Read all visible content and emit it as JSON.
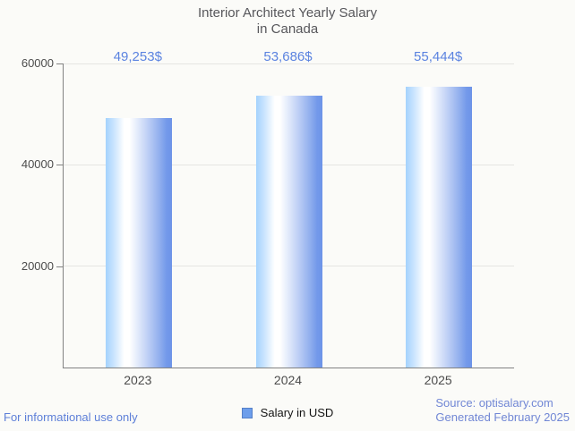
{
  "chart_data": {
    "type": "bar",
    "title": "Interior Architect Yearly Salary in Canada",
    "title_lines": [
      "Interior Architect Yearly Salary",
      "in Canada"
    ],
    "categories": [
      "2023",
      "2024",
      "2025"
    ],
    "series": [
      {
        "name": "Salary in USD",
        "values": [
          49253,
          53686,
          55444
        ]
      }
    ],
    "value_labels": [
      "49,253$",
      "53,686$",
      "55,444$"
    ],
    "ylim": [
      0,
      60000
    ],
    "yticks": [
      20000,
      40000,
      60000
    ],
    "ytick_labels": [
      "20000",
      "40000",
      "60000"
    ],
    "grid": "horizontal-on",
    "legend_position": "bottom-center",
    "xlabel": "",
    "ylabel": ""
  },
  "legend": {
    "label": "Salary in USD"
  },
  "footer": {
    "disclaimer": "For informational use only",
    "source": "Source: optisalary.com",
    "generated": "Generated February 2025"
  },
  "colors": {
    "background": "#fbfbf8",
    "title_text": "#57575b",
    "value_label_blue": "#5b83e0",
    "footer_blue": "#6684d9",
    "bar_gradient_left": "#a4d2fd",
    "bar_gradient_mid": "#ffffff",
    "bar_gradient_right": "#6d94e8",
    "legend_swatch": "#6d9eeb",
    "axis_line": "#828282",
    "gridline": "#e5e5e2",
    "tick_text": "#4c4c4c"
  }
}
